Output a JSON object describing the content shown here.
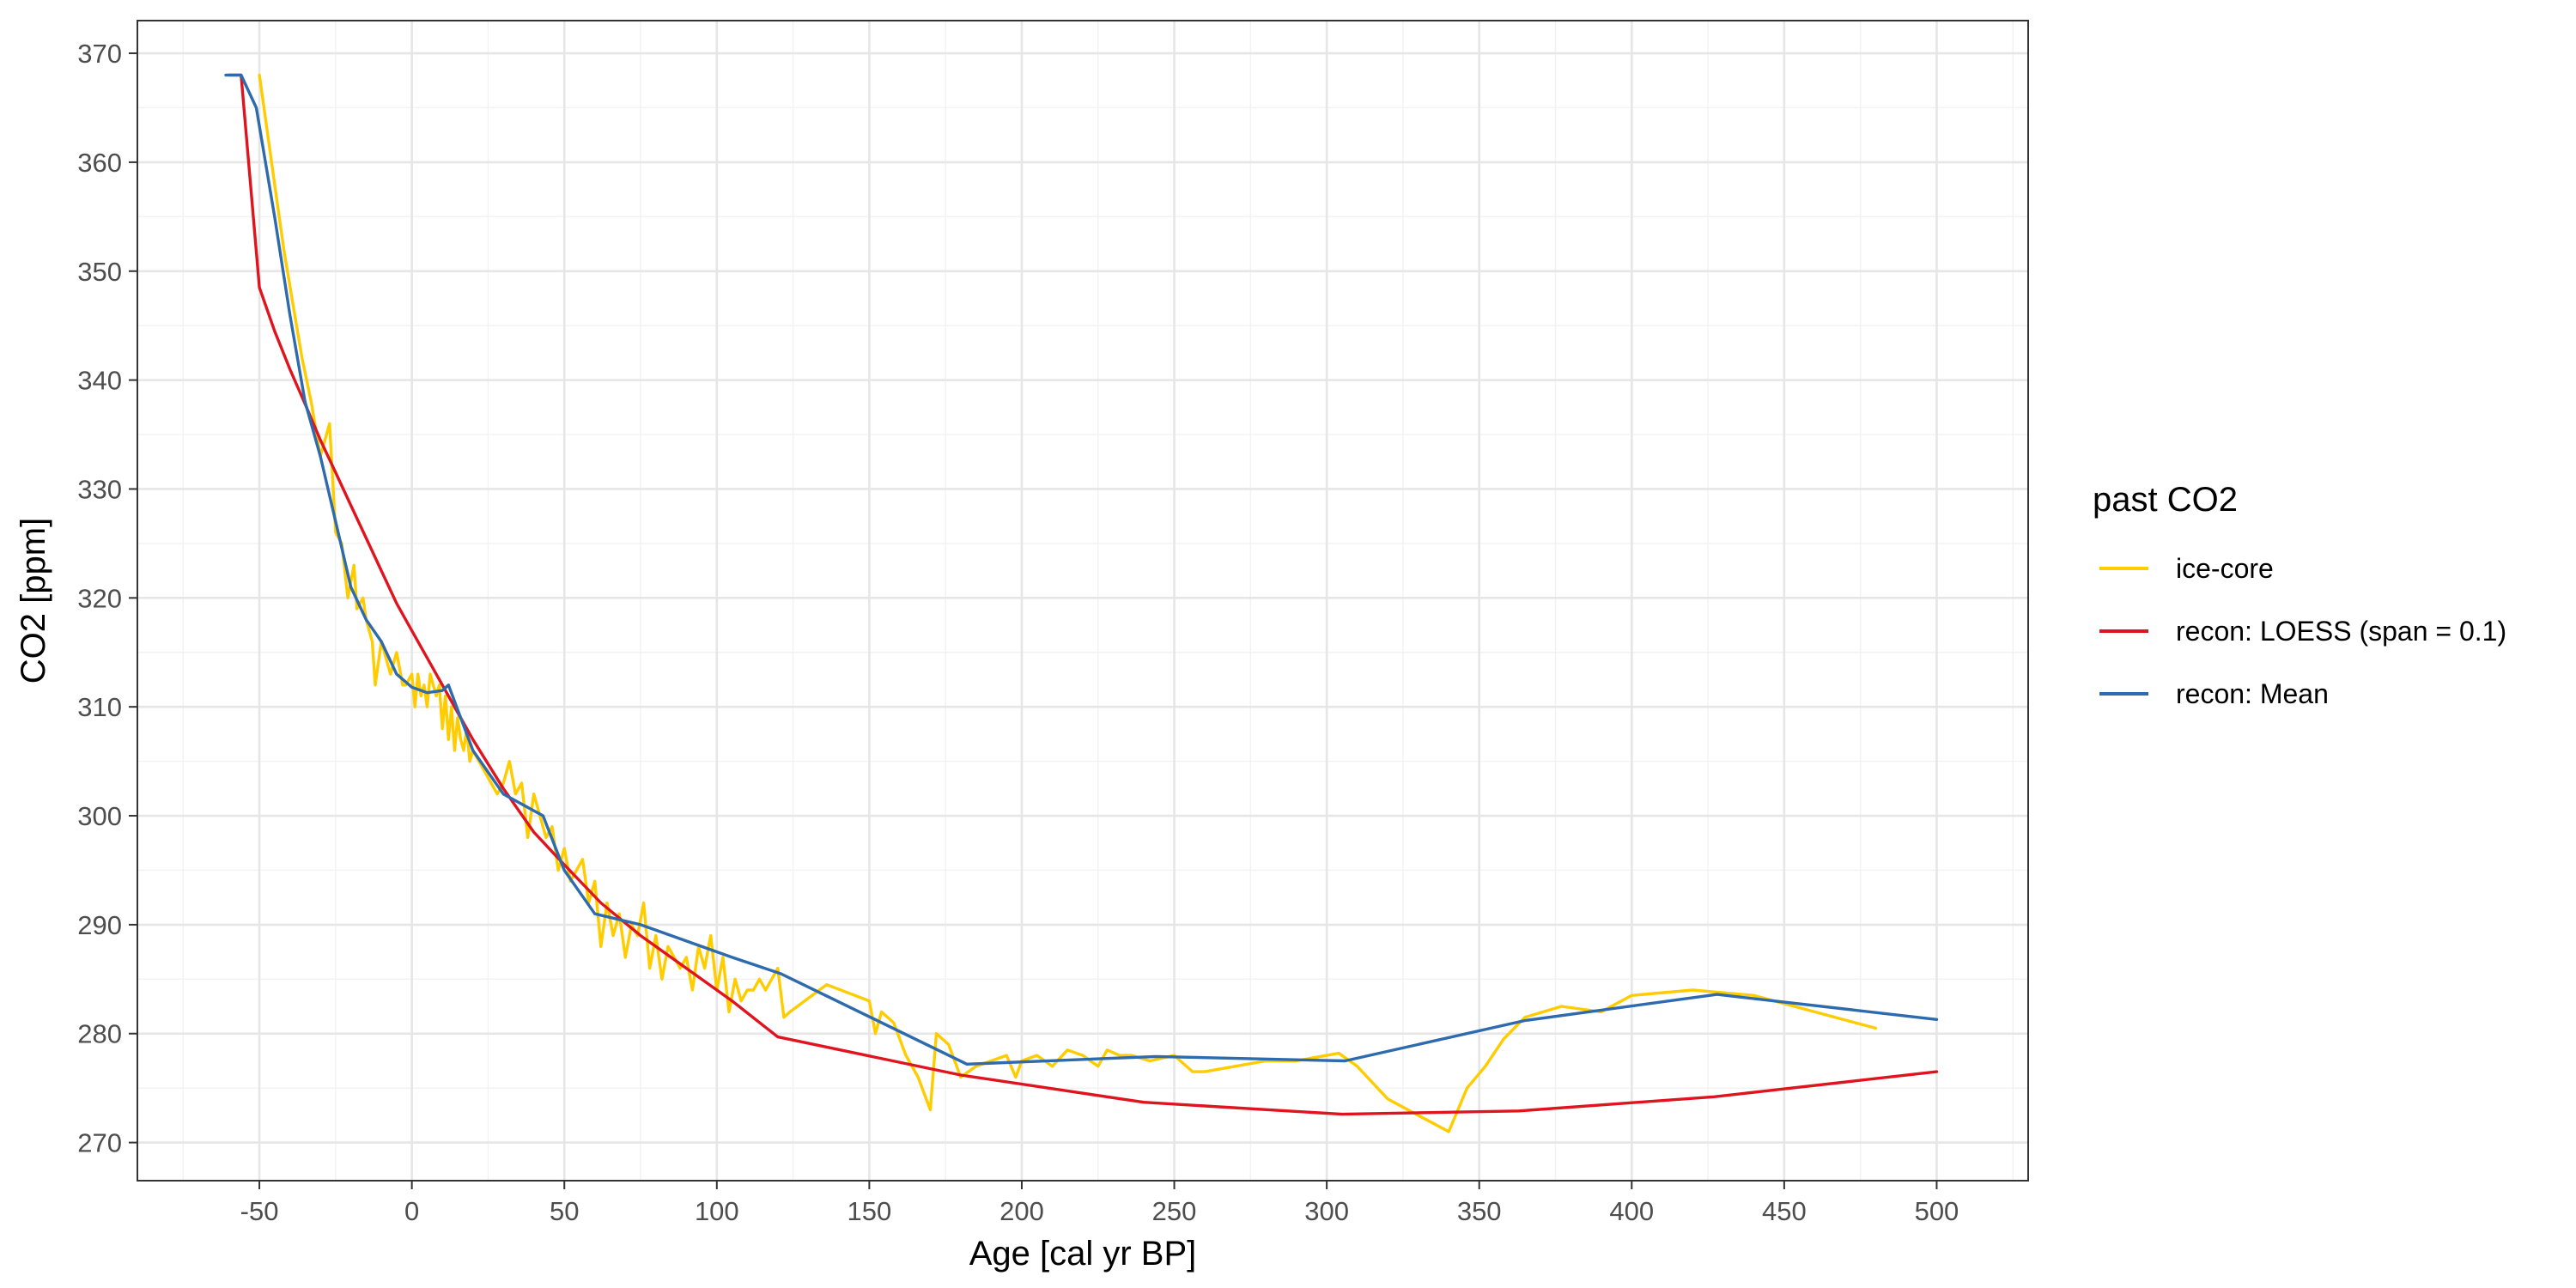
{
  "chart_data": {
    "type": "line",
    "title": "",
    "xlabel": "Age [cal yr BP]",
    "ylabel": "CO2 [ppm]",
    "xlim": [
      -90,
      530
    ],
    "ylim": [
      266.5,
      373
    ],
    "x_ticks": [
      -50,
      0,
      50,
      100,
      150,
      200,
      250,
      300,
      350,
      400,
      450,
      500
    ],
    "y_ticks": [
      270,
      280,
      290,
      300,
      310,
      320,
      330,
      340,
      350,
      360,
      370
    ],
    "grid": true,
    "legend": {
      "title": "past CO2",
      "position": "right"
    },
    "series": [
      {
        "name": "ice-core",
        "color": "#FFCC00",
        "x": [
          -50,
          -48,
          -45,
          -42,
          -39,
          -36,
          -33,
          -30,
          -27,
          -25,
          -23,
          -21,
          -19,
          -18,
          -16,
          -15,
          -13,
          -12,
          -10,
          -9,
          -8,
          -7,
          -5,
          -3,
          -2,
          0,
          1,
          2,
          3,
          4,
          5,
          6,
          7,
          8,
          9,
          10,
          11,
          12,
          13,
          14,
          15,
          16,
          17,
          18,
          19,
          20,
          22,
          24,
          26,
          28,
          30,
          32,
          34,
          36,
          38,
          40,
          42,
          44,
          46,
          48,
          50,
          52,
          54,
          56,
          58,
          60,
          62,
          64,
          66,
          68,
          70,
          72,
          74,
          76,
          78,
          80,
          82,
          84,
          86,
          88,
          90,
          92,
          94,
          96,
          98,
          100,
          102,
          104,
          106,
          108,
          110,
          112,
          114,
          116,
          118,
          120,
          122,
          124,
          136,
          150,
          152,
          154,
          158,
          162,
          166,
          170,
          172,
          176,
          180,
          185,
          190,
          195,
          198,
          200,
          205,
          210,
          215,
          220,
          225,
          228,
          232,
          236,
          242,
          250,
          256,
          260,
          270,
          280,
          290,
          300,
          304,
          310,
          320,
          330,
          340,
          346,
          352,
          358,
          365,
          377,
          390,
          400,
          420,
          440,
          460,
          480
        ],
        "y": [
          368,
          364,
          358,
          352,
          347,
          342,
          338,
          333,
          336,
          326,
          325,
          320,
          323,
          319,
          320,
          318,
          316,
          312,
          316,
          315,
          314,
          313,
          315,
          312,
          312,
          313,
          310,
          313,
          311,
          312,
          310,
          313,
          312,
          311,
          312,
          308,
          311,
          307,
          310,
          306,
          309,
          307,
          306,
          308,
          305,
          306,
          305,
          304,
          303,
          302,
          303,
          305,
          302,
          303,
          298,
          302,
          300,
          298,
          299,
          295,
          297,
          294,
          295,
          296,
          292,
          294,
          288,
          292,
          289,
          291,
          287,
          290,
          289,
          292,
          286,
          289,
          285,
          288,
          287,
          286,
          287,
          284,
          288,
          286,
          289,
          284,
          287,
          282,
          285,
          283,
          284,
          284,
          285,
          284,
          285,
          286,
          281.5,
          282,
          284.5,
          283,
          280,
          282,
          281,
          278,
          276,
          273,
          280,
          279,
          276,
          277,
          277.5,
          278,
          276,
          277.5,
          278,
          277,
          278.5,
          278,
          277,
          278.5,
          278,
          278,
          277.5,
          278,
          276.5,
          276.5,
          277,
          277.5,
          277.5,
          278,
          278.2,
          277,
          274,
          272.5,
          271,
          275,
          277,
          279.5,
          281.5,
          282.5,
          282,
          283.5,
          284,
          283.5,
          282,
          280.5
        ]
      },
      {
        "name": "recon: LOESS (span = 0.1)",
        "color": "#E0141E",
        "x": [
          -60,
          -56,
          -50,
          -45,
          -40,
          -35,
          -30,
          -25,
          -20,
          -15,
          -10,
          -5,
          0,
          5,
          10,
          15,
          20,
          30,
          40,
          50,
          62,
          75,
          90,
          105,
          120,
          180,
          240,
          305,
          363,
          427,
          500
        ],
        "y": [
          368,
          368,
          348.5,
          344.5,
          341,
          337.8,
          334.5,
          331.5,
          328.5,
          325.5,
          322.5,
          319.5,
          317,
          314.5,
          312,
          309.5,
          307,
          302.5,
          298.5,
          295.5,
          292,
          289,
          286,
          283,
          279.7,
          276.2,
          273.7,
          272.6,
          272.9,
          274.2,
          276.5
        ]
      },
      {
        "name": "recon: Mean",
        "color": "#2D6AAE",
        "x": [
          -61,
          -56,
          -51,
          -45,
          -40,
          -35,
          -30,
          -25,
          -20,
          -15,
          -10,
          -5,
          0,
          5,
          10,
          12,
          20,
          30,
          43,
          50,
          60,
          75,
          90,
          105,
          121,
          182,
          244,
          306,
          365,
          428,
          500
        ],
        "y": [
          368,
          368,
          365,
          355,
          346,
          338,
          333,
          327,
          321,
          318,
          316,
          313,
          311.8,
          311.3,
          311.5,
          312,
          306,
          302,
          300,
          295,
          291,
          290,
          288.5,
          287,
          285.5,
          277.2,
          277.9,
          277.5,
          281.2,
          283.6,
          281.3
        ]
      }
    ]
  }
}
